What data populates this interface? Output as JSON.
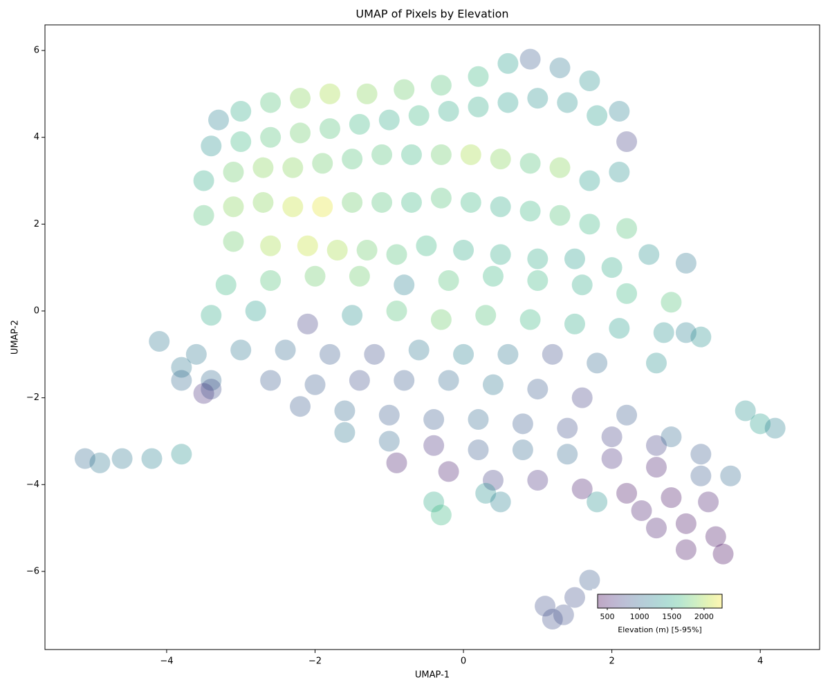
{
  "chart_data": {
    "type": "scatter",
    "title": "UMAP of Pixels by Elevation",
    "x_label": "UMAP-1",
    "y_label": "UMAP-2",
    "xlim": [
      -5.64,
      4.8
    ],
    "ylim": [
      -7.8,
      6.59
    ],
    "xticks": [
      {
        "value": -4,
        "label": "−4"
      },
      {
        "value": -2,
        "label": "−2"
      },
      0,
      2,
      4
    ],
    "yticks": [
      {
        "value": -6,
        "label": "−6"
      },
      {
        "value": -4,
        "label": "−4"
      },
      {
        "value": -2,
        "label": "−2"
      },
      0,
      2,
      4,
      6
    ],
    "colormap": "viridis",
    "colorbar": {
      "label": "Elevation (m) [5-95%]",
      "clim": [
        350,
        2280
      ],
      "ticks": [
        500,
        1000,
        1500,
        2000
      ]
    },
    "x": [
      -3.3,
      -3.0,
      -2.6,
      -2.2,
      -1.8,
      -1.3,
      -0.8,
      -0.3,
      0.2,
      0.6,
      0.9,
      1.3,
      1.7,
      2.1,
      2.2,
      -3.4,
      -3.0,
      -2.6,
      -2.2,
      -1.8,
      -1.4,
      -1.0,
      -0.6,
      -0.2,
      0.2,
      0.6,
      1.0,
      1.4,
      1.8,
      -3.5,
      -3.1,
      -2.7,
      -2.3,
      -1.9,
      -1.5,
      -1.1,
      -0.7,
      -0.3,
      0.1,
      0.5,
      0.9,
      1.3,
      1.7,
      2.1,
      -3.5,
      -3.1,
      -2.7,
      -2.3,
      -1.9,
      -1.5,
      -1.1,
      -0.7,
      -0.3,
      0.1,
      0.5,
      0.9,
      1.3,
      1.7,
      2.2,
      -3.1,
      -2.6,
      -2.1,
      -1.7,
      -1.3,
      -0.9,
      -0.5,
      0,
      0.5,
      1.0,
      1.5,
      2.0,
      2.5,
      3.0,
      -3.2,
      -2.6,
      -2.0,
      -1.4,
      -0.8,
      -0.2,
      0.4,
      1.0,
      1.6,
      2.2,
      2.8,
      -3.4,
      -2.8,
      -2.1,
      -1.5,
      -0.9,
      -0.3,
      0.3,
      0.9,
      1.5,
      2.1,
      2.7,
      3.2,
      -3.6,
      -3.0,
      -2.4,
      -1.8,
      -1.2,
      -0.6,
      0,
      0.6,
      1.2,
      1.8,
      -3.8,
      -3.4,
      -2.6,
      -2.0,
      -1.4,
      -0.8,
      -0.2,
      0.4,
      1.0,
      1.6,
      -3.5,
      -2.2,
      -1.6,
      -1.0,
      -0.4,
      0.2,
      0.8,
      1.4,
      2.0,
      2.6,
      -1.6,
      -1.0,
      -0.4,
      0.2,
      0.8,
      1.4,
      2.0,
      2.6,
      3.2,
      3.6,
      -0.9,
      -0.2,
      0.4,
      1.0,
      1.6,
      2.2,
      2.8,
      3.3,
      1.8,
      2.4,
      3.0,
      3.4,
      3.5,
      3.0,
      2.6,
      2.8,
      3.2,
      2.2,
      2.6,
      3.0,
      -4.1,
      -3.8,
      -3.4,
      -5.1,
      -4.9,
      -4.6,
      -4.2,
      -3.8,
      1.1,
      1.2,
      1.35,
      1.5,
      1.7,
      3.8,
      4.0,
      4.2,
      -0.4,
      -0.3,
      0.3,
      0.5
    ],
    "y": [
      4.4,
      4.6,
      4.8,
      4.9,
      5.0,
      5.0,
      5.1,
      5.2,
      5.4,
      5.7,
      5.8,
      5.6,
      5.3,
      4.6,
      3.9,
      3.8,
      3.9,
      4.0,
      4.1,
      4.2,
      4.3,
      4.4,
      4.5,
      4.6,
      4.7,
      4.8,
      4.9,
      4.8,
      4.5,
      3.0,
      3.2,
      3.3,
      3.3,
      3.4,
      3.5,
      3.6,
      3.6,
      3.6,
      3.6,
      3.5,
      3.4,
      3.3,
      3.0,
      3.2,
      2.2,
      2.4,
      2.5,
      2.4,
      2.4,
      2.5,
      2.5,
      2.5,
      2.6,
      2.5,
      2.4,
      2.3,
      2.2,
      2.0,
      1.9,
      1.6,
      1.5,
      1.5,
      1.4,
      1.4,
      1.3,
      1.5,
      1.4,
      1.3,
      1.2,
      1.2,
      1.0,
      1.3,
      1.1,
      0.6,
      0.7,
      0.8,
      0.8,
      0.6,
      0.7,
      0.8,
      0.7,
      0.6,
      0.4,
      0.2,
      -0.1,
      0,
      -0.3,
      -0.1,
      0,
      -0.2,
      -0.1,
      -0.2,
      -0.3,
      -0.4,
      -0.5,
      -0.6,
      -1.0,
      -0.9,
      -0.9,
      -1.0,
      -1.0,
      -0.9,
      -1.0,
      -1.0,
      -1.0,
      -1.2,
      -1.3,
      -1.6,
      -1.6,
      -1.7,
      -1.6,
      -1.6,
      -1.6,
      -1.7,
      -1.8,
      -2.0,
      -1.9,
      -2.2,
      -2.3,
      -2.4,
      -2.5,
      -2.5,
      -2.6,
      -2.7,
      -2.9,
      -3.1,
      -2.8,
      -3.0,
      -3.1,
      -3.2,
      -3.2,
      -3.3,
      -3.4,
      -3.6,
      -3.8,
      -3.8,
      -3.5,
      -3.7,
      -3.9,
      -3.9,
      -4.1,
      -4.2,
      -4.3,
      -4.4,
      -4.4,
      -4.6,
      -4.9,
      -5.2,
      -5.6,
      -5.5,
      -5.0,
      -2.9,
      -3.3,
      -2.4,
      -1.2,
      -0.5,
      -0.7,
      -1.6,
      -1.8,
      -3.4,
      -3.5,
      -3.4,
      -3.4,
      -3.3,
      -6.8,
      -7.1,
      -7.0,
      -6.6,
      -6.2,
      -2.3,
      -2.6,
      -2.7,
      -4.4,
      -4.7,
      -4.2,
      -4.4
    ],
    "c": [
      1200,
      1500,
      1700,
      1900,
      2000,
      1900,
      1800,
      1700,
      1600,
      1400,
      900,
      1100,
      1300,
      1200,
      700,
      1300,
      1600,
      1700,
      1800,
      1700,
      1600,
      1500,
      1600,
      1500,
      1500,
      1400,
      1300,
      1300,
      1400,
      1500,
      1800,
      1900,
      1900,
      1800,
      1700,
      1700,
      1600,
      1800,
      2000,
      1900,
      1700,
      1900,
      1400,
      1300,
      1700,
      1900,
      1900,
      2100,
      2200,
      1800,
      1700,
      1600,
      1700,
      1600,
      1500,
      1600,
      1700,
      1600,
      1700,
      1800,
      2000,
      2100,
      2000,
      1800,
      1700,
      1600,
      1500,
      1500,
      1500,
      1400,
      1500,
      1300,
      1100,
      1600,
      1700,
      1800,
      1800,
      1200,
      1700,
      1600,
      1600,
      1500,
      1600,
      1700,
      1500,
      1400,
      700,
      1300,
      1700,
      1800,
      1700,
      1600,
      1500,
      1400,
      1300,
      1300,
      1100,
      1100,
      1000,
      900,
      800,
      1100,
      1200,
      1100,
      800,
      1000,
      1100,
      1000,
      900,
      900,
      800,
      900,
      1000,
      1100,
      900,
      700,
      600,
      900,
      1000,
      900,
      900,
      1000,
      900,
      800,
      700,
      700,
      1100,
      1000,
      600,
      900,
      1000,
      1000,
      600,
      500,
      900,
      1000,
      500,
      500,
      700,
      600,
      500,
      450,
      450,
      500,
      1300,
      500,
      450,
      450,
      400,
      450,
      500,
      1000,
      900,
      900,
      1300,
      1200,
      1100,
      1000,
      800,
      1000,
      1100,
      1100,
      1200,
      1300,
      800,
      800,
      800,
      800,
      900,
      1300,
      1400,
      1200,
      1500,
      1600,
      1300,
      1200
    ]
  }
}
